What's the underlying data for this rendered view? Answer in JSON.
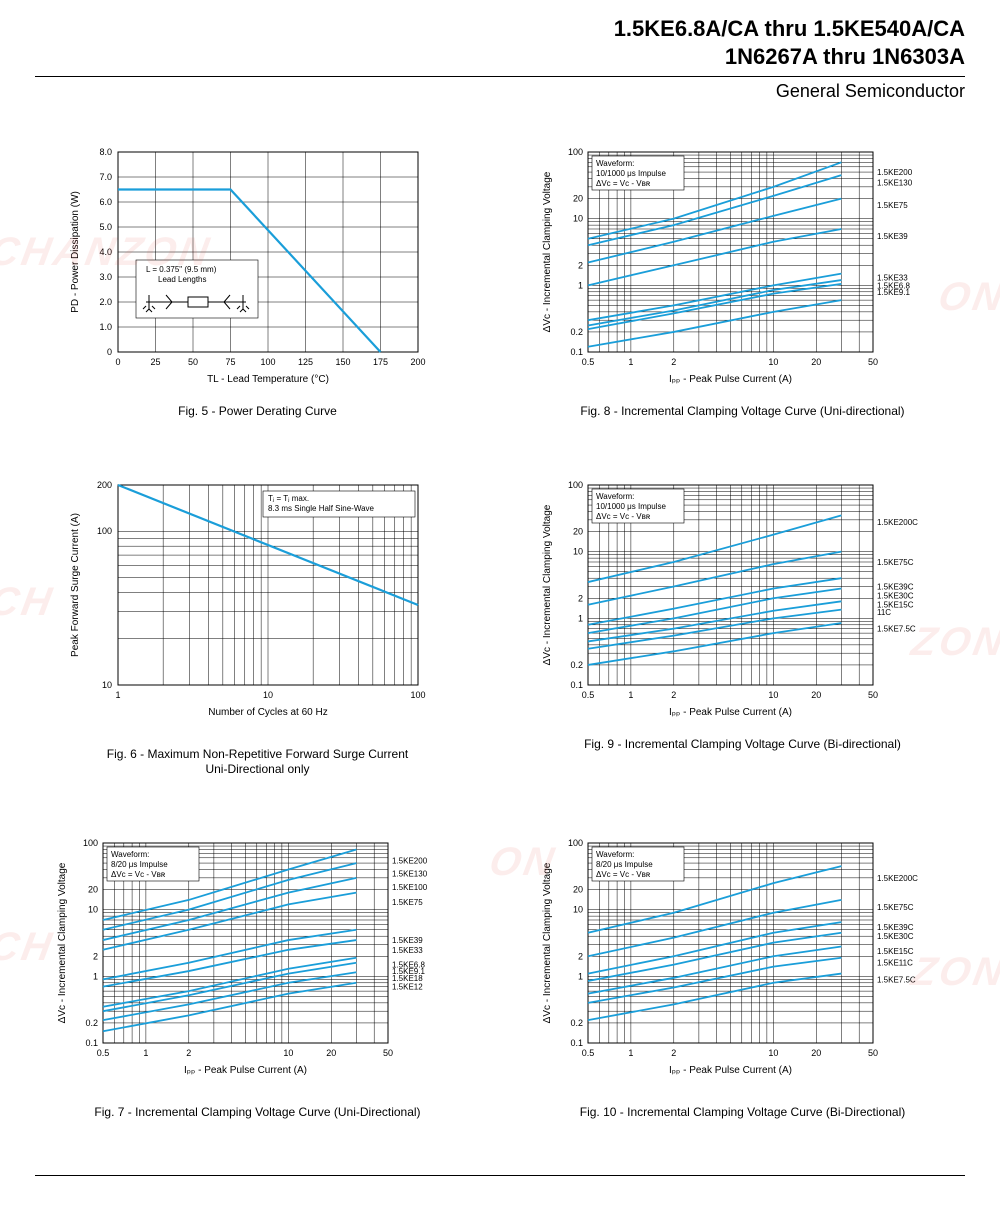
{
  "header": {
    "title_line1": "1.5KE6.8A/CA thru 1.5KE540A/CA",
    "title_line2": "1N6267A thru 1N6303A",
    "subtitle": "General Semiconductor"
  },
  "colors": {
    "data": "#1a9ed9",
    "axis": "#000000",
    "bg": "#ffffff",
    "watermark": "rgba(225,75,70,0.10)"
  },
  "fig5": {
    "caption": "Fig. 5 - Power Derating Curve",
    "xlabel": "Tₗ - Lead Temperature (°C)",
    "ylabel": "Pₒ - Power Dissipation (W)",
    "xlim": [
      0,
      200
    ],
    "ylim": [
      0,
      8.0
    ],
    "xticks": [
      0,
      25,
      50,
      75,
      100,
      125,
      150,
      175,
      200
    ],
    "yticks": [
      0,
      1.0,
      2.0,
      3.0,
      4.0,
      5.0,
      6.0,
      7.0,
      8.0
    ],
    "data": [
      [
        0,
        6.5
      ],
      [
        75,
        6.5
      ],
      [
        175,
        0
      ]
    ],
    "inset_text": "L = 0.375\" (9.5 mm)\nLead Lengths"
  },
  "fig6": {
    "caption": "Fig. 6 - Maximum Non-Repetitive Forward Surge Current\nUni-Directional only",
    "xlabel": "Number of Cycles at 60 Hz",
    "ylabel": "Peak Forward Surge Current (A)",
    "xlim_log": [
      1,
      100
    ],
    "ylim_log": [
      10,
      200
    ],
    "xticks": [
      1,
      10,
      100
    ],
    "yticks": [
      10,
      100,
      200
    ],
    "data": [
      [
        1,
        200
      ],
      [
        100,
        60
      ]
    ],
    "inset_text": "Tⱼ = Tⱼ max.\n8.3 ms Single Half Sine-Wave"
  },
  "fig7": {
    "caption": "Fig. 7 - Incremental Clamping Voltage Curve (Uni-Directional)",
    "xlabel": "Iₚₚ - Peak Pulse Current (A)",
    "ylabel": "ΔVᴄ - Incremental Clamping Voltage",
    "xlim_log": [
      0.5,
      50
    ],
    "ylim_log": [
      0.1,
      100
    ],
    "xticks": [
      0.5,
      1,
      2,
      10,
      20,
      50
    ],
    "yticks": [
      0.1,
      0.2,
      1.0,
      2.0,
      10,
      20,
      100
    ],
    "inset_text": "Waveform:\n8/20 μs Impulse\nΔVᴄ = Vᴄ - Vʙʀ",
    "series_labels": [
      "1.5KE200",
      "1.5KE130",
      "1.5KE100",
      "1.5KE75",
      "1.5KE39",
      "1.5KE33",
      "1.5KE6.8",
      "1.5KE9.1",
      "1.5KE18",
      "1.5KE12"
    ]
  },
  "fig8": {
    "caption": "Fig. 8 - Incremental Clamping Voltage Curve (Uni-directional)",
    "xlabel": "Iₚₚ - Peak Pulse Current (A)",
    "ylabel": "ΔVᴄ - Incremental Clamping Voltage",
    "xlim_log": [
      0.5,
      50
    ],
    "ylim_log": [
      0.1,
      100
    ],
    "xticks": [
      0.5,
      1,
      2,
      10,
      20,
      50
    ],
    "yticks": [
      0.1,
      0.2,
      1.0,
      2.0,
      10,
      20,
      100
    ],
    "inset_text": "Waveform:\n10/1000 μs Impulse\nΔVᴄ = Vᴄ - Vʙʀ",
    "series_labels": [
      "1.5KE200",
      "1.5KE130",
      "1.5KE75",
      "1.5KE39",
      "1.5KE33",
      "1.5KE6.8",
      "1.5KE9.1"
    ]
  },
  "fig9": {
    "caption": "Fig. 9 - Incremental Clamping Voltage Curve (Bi-directional)",
    "xlabel": "Iₚₚ - Peak Pulse Current (A)",
    "ylabel": "ΔVᴄ - Incremental Clamping Voltage",
    "xlim_log": [
      0.5,
      50
    ],
    "ylim_log": [
      0.1,
      100
    ],
    "xticks": [
      0.5,
      1,
      2,
      10,
      20,
      50
    ],
    "yticks": [
      0.1,
      0.2,
      1.0,
      2.0,
      10,
      20,
      100
    ],
    "inset_text": "Waveform:\n10/1000 μs Impulse\nΔVᴄ = Vᴄ - Vʙʀ",
    "series_labels": [
      "1.5KE200C",
      "1.5KE75C",
      "1.5KE39C",
      "1.5KE30C",
      "1.5KE15C",
      "11C",
      "1.5KE7.5C"
    ]
  },
  "fig10": {
    "caption": "Fig. 10 - Incremental Clamping Voltage Curve (Bi-Directional)",
    "xlabel": "Iₚₚ - Peak Pulse Current (A)",
    "ylabel": "ΔVᴄ - Incremental Clamping Voltage",
    "xlim_log": [
      0.5,
      50
    ],
    "ylim_log": [
      0.1,
      100
    ],
    "xticks": [
      0.5,
      1,
      2.0,
      10,
      20,
      50
    ],
    "yticks": [
      0.1,
      0.2,
      1,
      2,
      10,
      20,
      100
    ],
    "inset_text": "Waveform:\n8/20 μs Impulse\nΔVᴄ = Vᴄ - Vʙʀ",
    "series_labels": [
      "1.5KE200C",
      "1.5KE75C",
      "1.5KE39C",
      "1.5KE30C",
      "1.5KE15C",
      "1.5KE11C",
      "1.5KE7.5C"
    ]
  },
  "watermarks": [
    "CHANZON",
    "ON",
    "CH",
    "ZON",
    "CH",
    "ON",
    "ZON"
  ]
}
